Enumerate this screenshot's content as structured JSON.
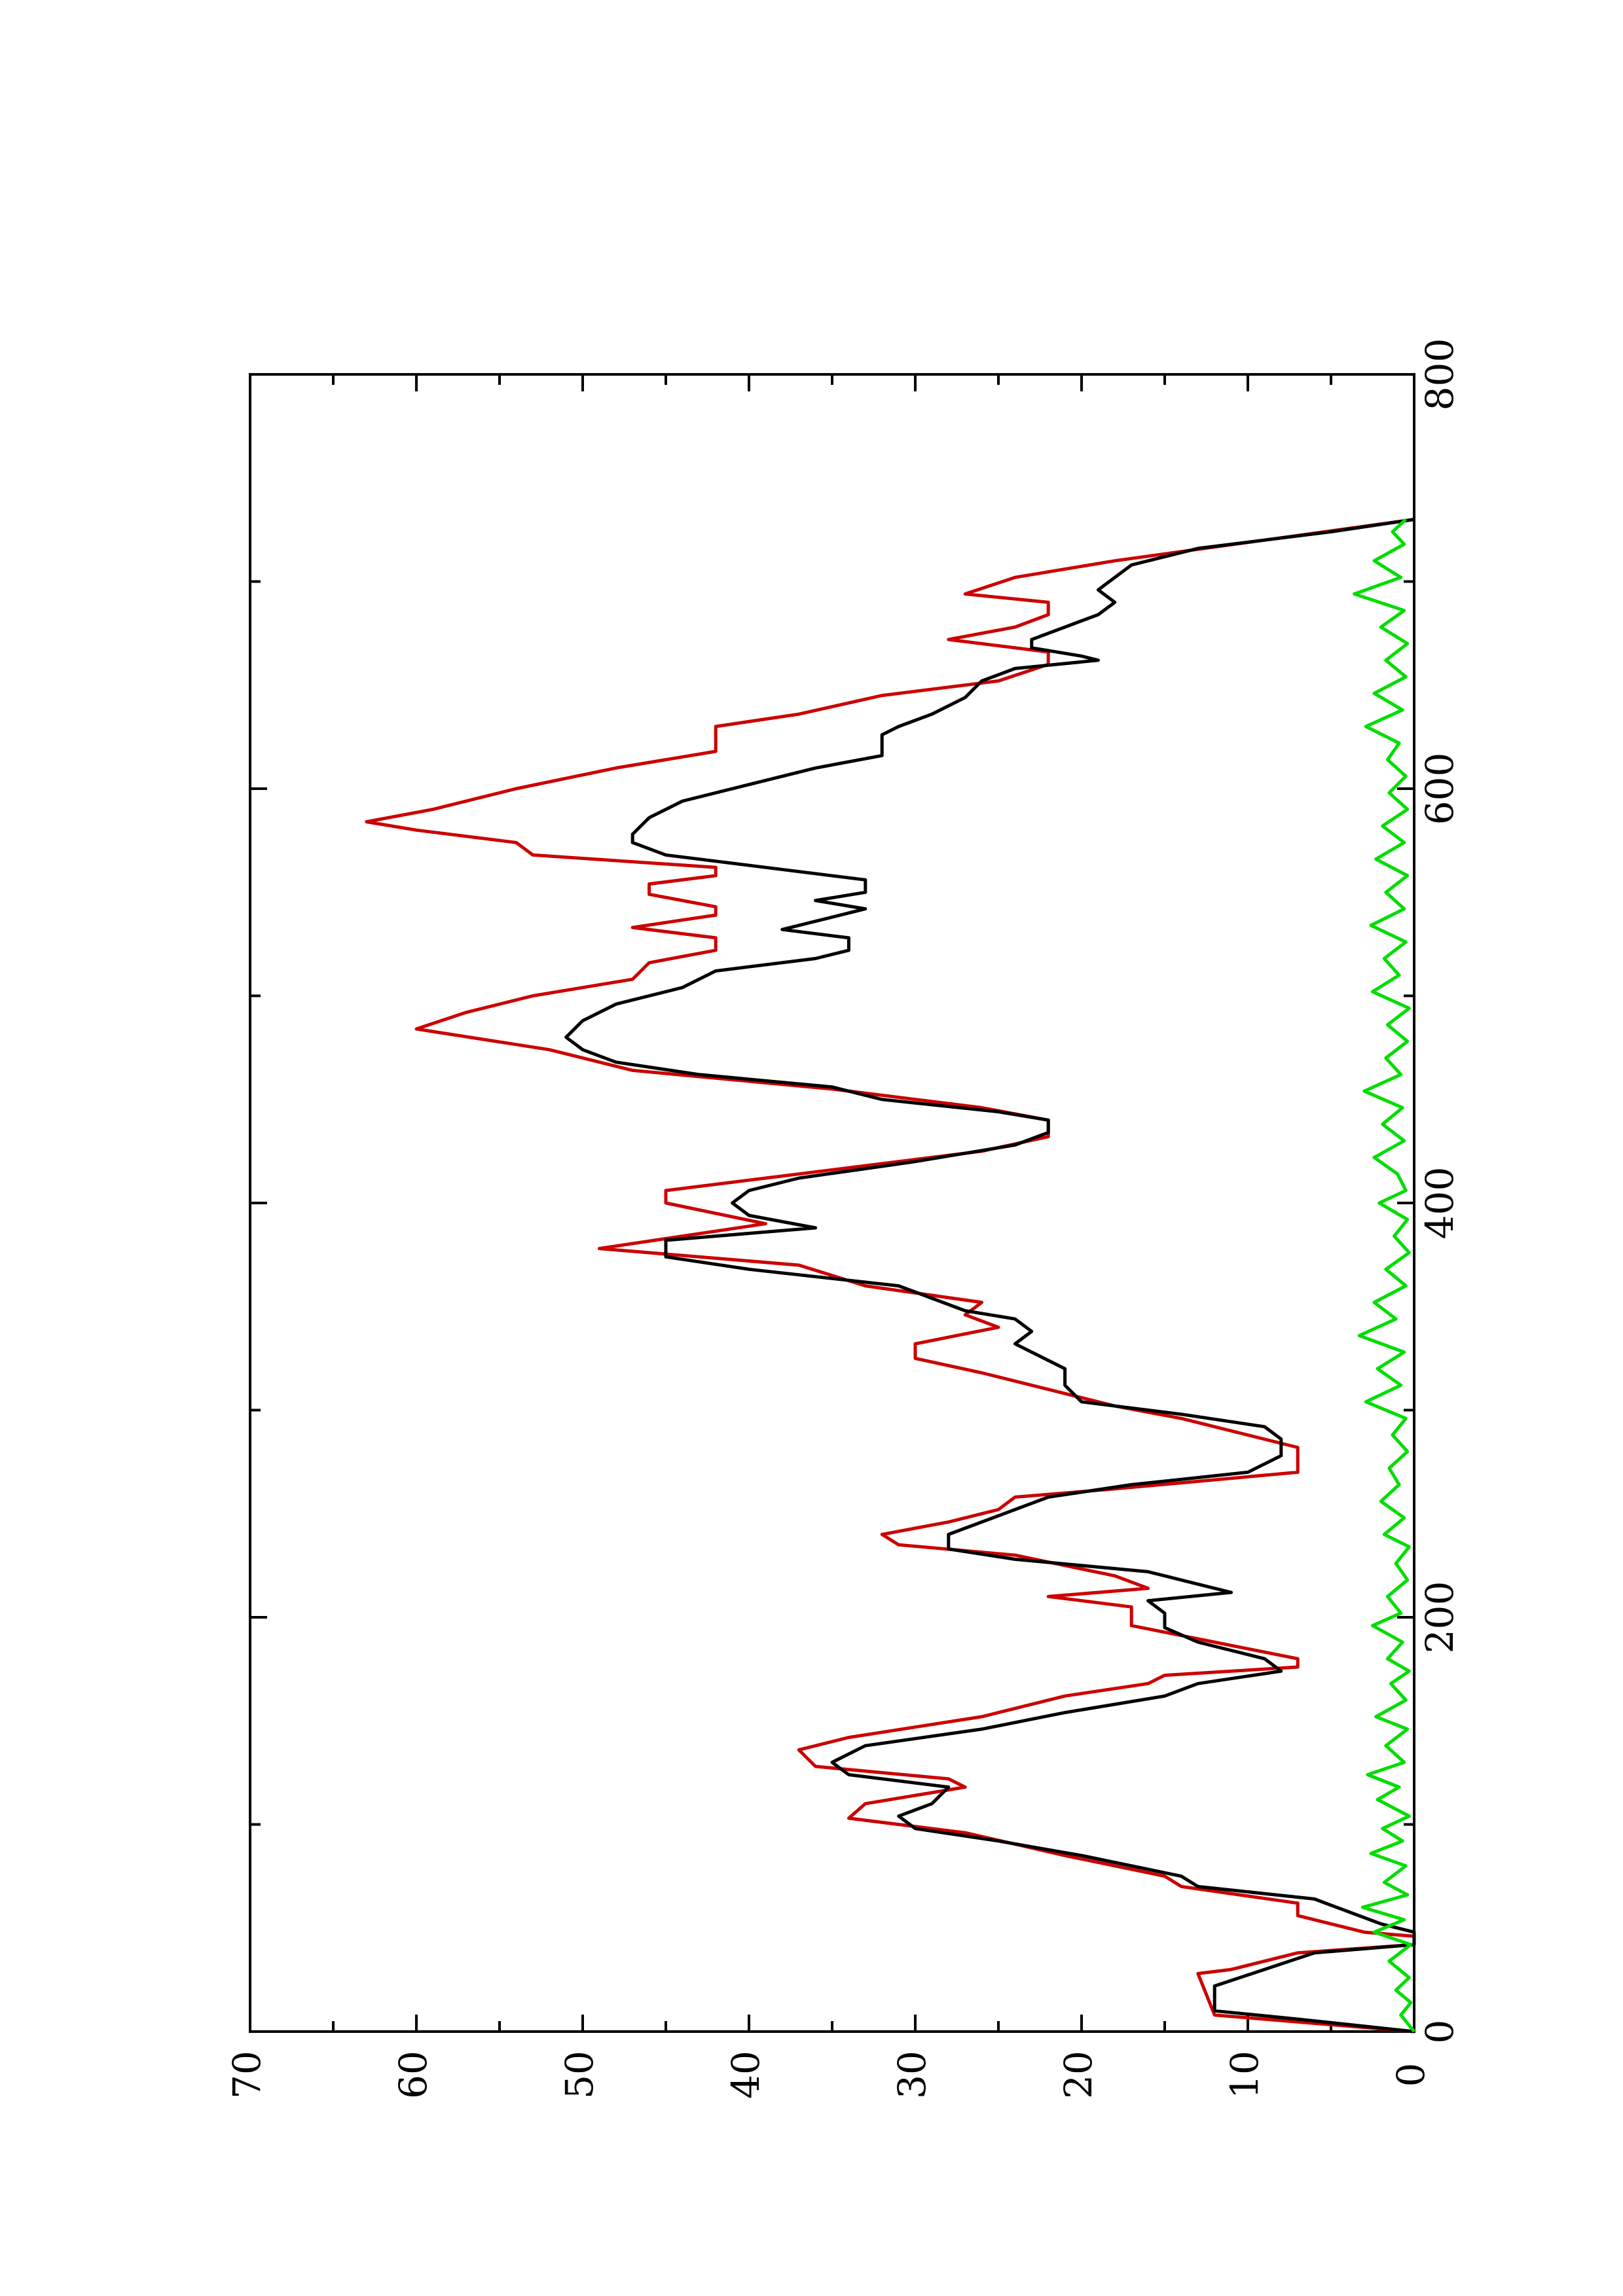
{
  "chart_data": {
    "type": "line",
    "title": "",
    "xlabel": "",
    "ylabel": "",
    "orientation": "rotated 90 degrees counter-clockwise (page is a rotated plot)",
    "xlim": [
      0,
      800
    ],
    "ylim": [
      0,
      70
    ],
    "xticks": [
      "0",
      "200",
      "400",
      "600",
      "800"
    ],
    "yticks": [
      "0",
      "10",
      "20",
      "30",
      "40",
      "50",
      "60",
      "70"
    ],
    "grid": false,
    "legend": "none",
    "series": [
      {
        "color": "#cc0000",
        "points": [
          [
            0,
            0
          ],
          [
            8,
            12
          ],
          [
            28,
            13
          ],
          [
            30,
            11
          ],
          [
            38,
            7
          ],
          [
            42,
            0
          ],
          [
            46,
            0
          ],
          [
            48,
            3
          ],
          [
            52,
            5
          ],
          [
            56,
            7
          ],
          [
            62,
            7
          ],
          [
            70,
            14
          ],
          [
            75,
            15
          ],
          [
            85,
            21
          ],
          [
            96,
            27
          ],
          [
            103,
            34
          ],
          [
            110,
            33
          ],
          [
            118,
            27
          ],
          [
            122,
            28
          ],
          [
            128,
            36
          ],
          [
            136,
            37
          ],
          [
            142,
            34
          ],
          [
            152,
            26
          ],
          [
            162,
            21
          ],
          [
            168,
            16
          ],
          [
            172,
            15
          ],
          [
            176,
            7
          ],
          [
            180,
            7
          ],
          [
            188,
            12
          ],
          [
            196,
            17
          ],
          [
            205,
            17
          ],
          [
            210,
            22
          ],
          [
            214,
            16
          ],
          [
            220,
            18
          ],
          [
            230,
            24
          ],
          [
            235,
            31
          ],
          [
            240,
            32
          ],
          [
            246,
            28
          ],
          [
            252,
            25
          ],
          [
            258,
            24
          ],
          [
            262,
            18
          ],
          [
            270,
            7
          ],
          [
            282,
            7
          ],
          [
            296,
            14
          ],
          [
            302,
            18
          ],
          [
            310,
            22
          ],
          [
            318,
            26
          ],
          [
            325,
            30
          ],
          [
            332,
            30
          ],
          [
            340,
            25
          ],
          [
            346,
            27
          ],
          [
            352,
            26
          ],
          [
            360,
            33
          ],
          [
            370,
            37
          ],
          [
            378,
            49
          ],
          [
            390,
            39
          ],
          [
            400,
            45
          ],
          [
            406,
            45
          ],
          [
            412,
            39
          ],
          [
            425,
            26
          ],
          [
            432,
            22
          ],
          [
            440,
            22
          ],
          [
            446,
            26
          ],
          [
            455,
            35
          ],
          [
            464,
            47
          ],
          [
            474,
            52
          ],
          [
            484,
            60
          ],
          [
            492,
            57
          ],
          [
            500,
            53
          ],
          [
            508,
            47
          ],
          [
            516,
            46
          ],
          [
            522,
            42
          ],
          [
            528,
            42
          ],
          [
            533,
            47
          ],
          [
            539,
            42
          ],
          [
            543,
            42
          ],
          [
            549,
            46
          ],
          [
            554,
            46
          ],
          [
            558,
            42
          ],
          [
            562,
            42
          ],
          [
            568,
            53
          ],
          [
            574,
            54
          ],
          [
            580,
            60
          ],
          [
            584,
            63
          ],
          [
            590,
            59
          ],
          [
            600,
            54
          ],
          [
            610,
            48
          ],
          [
            618,
            42
          ],
          [
            630,
            42
          ],
          [
            636,
            37
          ],
          [
            645,
            32
          ],
          [
            652,
            25
          ],
          [
            660,
            22
          ],
          [
            666,
            22
          ],
          [
            672,
            28
          ],
          [
            678,
            24
          ],
          [
            684,
            22
          ],
          [
            690,
            22
          ],
          [
            694,
            27
          ],
          [
            702,
            24
          ],
          [
            710,
            18
          ],
          [
            720,
            9
          ],
          [
            730,
            0
          ]
        ]
      },
      {
        "color": "#000000",
        "points": [
          [
            0,
            0
          ],
          [
            6,
            7
          ],
          [
            10,
            12
          ],
          [
            22,
            12
          ],
          [
            30,
            9
          ],
          [
            38,
            6
          ],
          [
            42,
            0
          ],
          [
            48,
            0
          ],
          [
            52,
            2
          ],
          [
            58,
            4
          ],
          [
            64,
            6
          ],
          [
            70,
            13
          ],
          [
            75,
            14
          ],
          [
            85,
            20
          ],
          [
            92,
            25
          ],
          [
            98,
            30
          ],
          [
            104,
            31
          ],
          [
            110,
            29
          ],
          [
            118,
            28
          ],
          [
            124,
            34
          ],
          [
            130,
            35
          ],
          [
            138,
            33
          ],
          [
            146,
            26
          ],
          [
            154,
            21
          ],
          [
            162,
            15
          ],
          [
            168,
            13
          ],
          [
            174,
            8
          ],
          [
            180,
            9
          ],
          [
            188,
            13
          ],
          [
            195,
            15
          ],
          [
            202,
            15
          ],
          [
            208,
            16
          ],
          [
            212,
            11
          ],
          [
            216,
            13
          ],
          [
            222,
            16
          ],
          [
            228,
            24
          ],
          [
            233,
            28
          ],
          [
            240,
            28
          ],
          [
            246,
            26
          ],
          [
            252,
            24
          ],
          [
            258,
            22
          ],
          [
            264,
            17
          ],
          [
            270,
            10
          ],
          [
            278,
            8
          ],
          [
            286,
            8
          ],
          [
            292,
            9
          ],
          [
            298,
            14
          ],
          [
            304,
            20
          ],
          [
            312,
            21
          ],
          [
            320,
            21
          ],
          [
            328,
            23
          ],
          [
            332,
            24
          ],
          [
            338,
            23
          ],
          [
            344,
            24
          ],
          [
            348,
            27
          ],
          [
            354,
            29
          ],
          [
            360,
            31
          ],
          [
            368,
            40
          ],
          [
            374,
            45
          ],
          [
            382,
            45
          ],
          [
            388,
            36
          ],
          [
            394,
            40
          ],
          [
            400,
            41
          ],
          [
            406,
            40
          ],
          [
            412,
            37
          ],
          [
            420,
            30
          ],
          [
            428,
            24
          ],
          [
            434,
            22
          ],
          [
            440,
            22
          ],
          [
            444,
            25
          ],
          [
            450,
            32
          ],
          [
            456,
            35
          ],
          [
            462,
            43
          ],
          [
            468,
            48
          ],
          [
            474,
            50
          ],
          [
            480,
            51
          ],
          [
            488,
            50
          ],
          [
            496,
            48
          ],
          [
            504,
            44
          ],
          [
            512,
            42
          ],
          [
            518,
            36
          ],
          [
            522,
            34
          ],
          [
            528,
            34
          ],
          [
            532,
            38
          ],
          [
            536,
            36
          ],
          [
            542,
            33
          ],
          [
            546,
            36
          ],
          [
            550,
            33
          ],
          [
            556,
            33
          ],
          [
            562,
            39
          ],
          [
            568,
            45
          ],
          [
            574,
            47
          ],
          [
            578,
            47
          ],
          [
            586,
            46
          ],
          [
            594,
            44
          ],
          [
            602,
            40
          ],
          [
            610,
            36
          ],
          [
            616,
            32
          ],
          [
            626,
            32
          ],
          [
            630,
            31
          ],
          [
            636,
            29
          ],
          [
            644,
            27
          ],
          [
            652,
            26
          ],
          [
            658,
            24
          ],
          [
            662,
            19
          ],
          [
            664,
            20
          ],
          [
            668,
            23
          ],
          [
            672,
            23
          ],
          [
            678,
            21
          ],
          [
            684,
            19
          ],
          [
            690,
            18
          ],
          [
            696,
            19
          ],
          [
            702,
            18
          ],
          [
            708,
            17
          ],
          [
            716,
            13
          ],
          [
            724,
            5
          ],
          [
            730,
            0
          ]
        ]
      },
      {
        "color": "#00dd00",
        "points": [
          [
            0,
            0
          ],
          [
            8,
            0.8
          ],
          [
            14,
            0.2
          ],
          [
            20,
            1.1
          ],
          [
            26,
            0.3
          ],
          [
            34,
            1.5
          ],
          [
            42,
            0.2
          ],
          [
            48,
            2.4
          ],
          [
            54,
            0.6
          ],
          [
            60,
            3.1
          ],
          [
            66,
            0.4
          ],
          [
            72,
            1.8
          ],
          [
            80,
            0.5
          ],
          [
            86,
            2.6
          ],
          [
            92,
            0.7
          ],
          [
            98,
            1.9
          ],
          [
            104,
            0.3
          ],
          [
            112,
            2.2
          ],
          [
            118,
            0.9
          ],
          [
            124,
            2.8
          ],
          [
            130,
            0.6
          ],
          [
            138,
            1.7
          ],
          [
            146,
            0.4
          ],
          [
            152,
            2.3
          ],
          [
            160,
            0.5
          ],
          [
            168,
            1.4
          ],
          [
            174,
            0.3
          ],
          [
            180,
            1.6
          ],
          [
            188,
            0.7
          ],
          [
            196,
            2.5
          ],
          [
            202,
            0.8
          ],
          [
            210,
            1.6
          ],
          [
            218,
            0.4
          ],
          [
            226,
            1.1
          ],
          [
            234,
            0.3
          ],
          [
            240,
            1.8
          ],
          [
            248,
            0.6
          ],
          [
            256,
            2.0
          ],
          [
            264,
            0.9
          ],
          [
            272,
            1.5
          ],
          [
            280,
            0.4
          ],
          [
            288,
            1.3
          ],
          [
            296,
            0.5
          ],
          [
            304,
            2.9
          ],
          [
            312,
            0.8
          ],
          [
            320,
            2.2
          ],
          [
            328,
            0.6
          ],
          [
            336,
            3.3
          ],
          [
            344,
            1.1
          ],
          [
            352,
            2.4
          ],
          [
            360,
            0.5
          ],
          [
            368,
            1.7
          ],
          [
            376,
            0.3
          ],
          [
            384,
            1.2
          ],
          [
            392,
            0.4
          ],
          [
            400,
            2.1
          ],
          [
            406,
            0.5
          ],
          [
            414,
            1.0
          ],
          [
            422,
            2.4
          ],
          [
            430,
            0.6
          ],
          [
            438,
            1.9
          ],
          [
            446,
            0.7
          ],
          [
            454,
            3.0
          ],
          [
            462,
            0.8
          ],
          [
            470,
            1.7
          ],
          [
            478,
            0.4
          ],
          [
            486,
            1.6
          ],
          [
            494,
            0.3
          ],
          [
            502,
            2.5
          ],
          [
            510,
            0.9
          ],
          [
            518,
            1.8
          ],
          [
            526,
            0.5
          ],
          [
            534,
            2.6
          ],
          [
            542,
            0.6
          ],
          [
            550,
            1.7
          ],
          [
            558,
            0.4
          ],
          [
            566,
            2.3
          ],
          [
            574,
            0.6
          ],
          [
            582,
            1.9
          ],
          [
            590,
            0.4
          ],
          [
            598,
            1.5
          ],
          [
            606,
            0.5
          ],
          [
            614,
            1.6
          ],
          [
            622,
            0.9
          ],
          [
            630,
            2.9
          ],
          [
            638,
            0.7
          ],
          [
            646,
            2.4
          ],
          [
            654,
            0.5
          ],
          [
            662,
            1.7
          ],
          [
            670,
            0.4
          ],
          [
            678,
            2.0
          ],
          [
            686,
            0.6
          ],
          [
            694,
            3.6
          ],
          [
            702,
            0.8
          ],
          [
            710,
            2.4
          ],
          [
            718,
            0.6
          ],
          [
            724,
            1.3
          ],
          [
            730,
            0.5
          ]
        ]
      }
    ]
  }
}
